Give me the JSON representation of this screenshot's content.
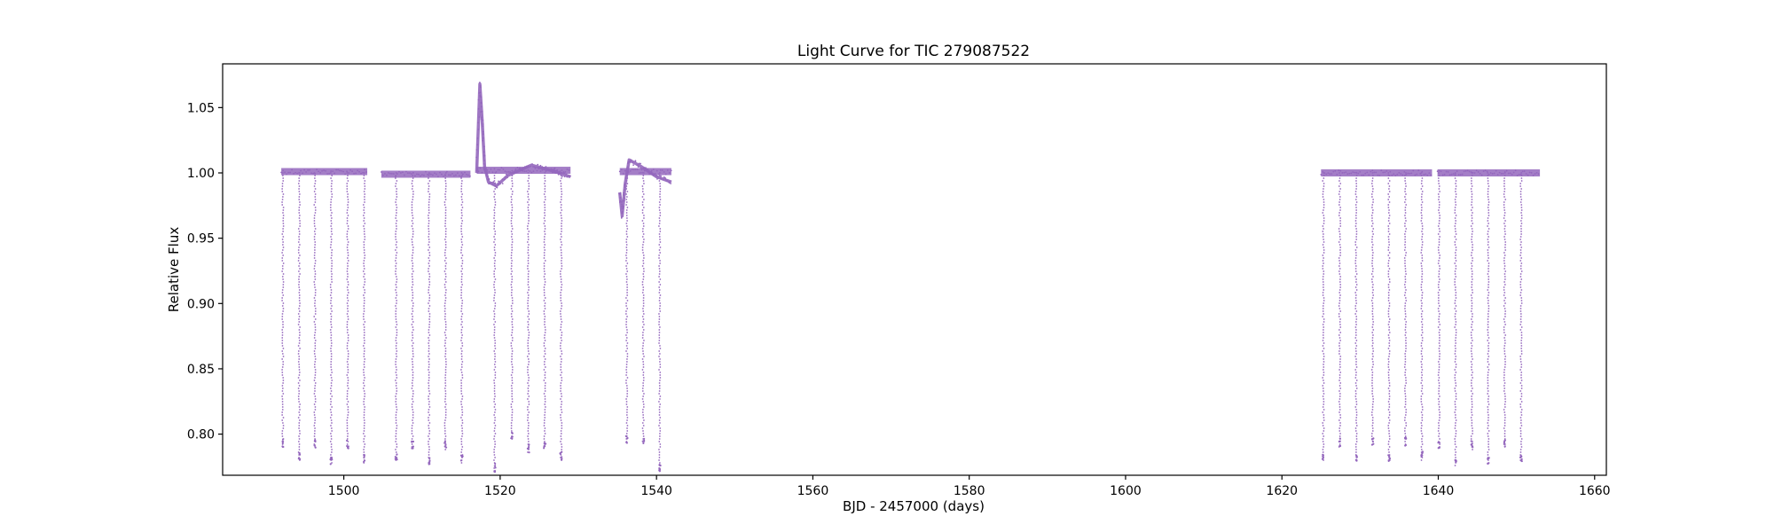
{
  "colors": {
    "series": "#9467bd",
    "axes": "#000000",
    "background": "#ffffff"
  },
  "chart_data": {
    "type": "scatter",
    "title": "Light Curve for TIC 279087522",
    "xlabel": "BJD - 2457000 (days)",
    "ylabel": "Relative Flux",
    "xlim": [
      1484.5,
      1661.5
    ],
    "ylim": [
      0.7685,
      1.0835
    ],
    "xticks": [
      1500,
      1520,
      1540,
      1560,
      1580,
      1600,
      1620,
      1640,
      1660
    ],
    "yticks": [
      0.8,
      0.85,
      0.9,
      0.95,
      1.0,
      1.05
    ],
    "grid": false,
    "legend": "none",
    "series_description": "Near-constant flux baseline around 1.00 with periodic eclipses (period about 2.1 days) dipping to about 0.78, plus a flare near day 1517.5 and a dip near day 1535.5.",
    "baseline_segments": [
      {
        "x_start": 1492.0,
        "x_end": 1503.0,
        "flux": 1.001
      },
      {
        "x_start": 1504.8,
        "x_end": 1516.2,
        "flux": 0.999
      },
      {
        "x_start": 1517.0,
        "x_end": 1529.0,
        "flux": 1.002
      },
      {
        "x_start": 1535.3,
        "x_end": 1541.9,
        "flux": 1.001
      },
      {
        "x_start": 1625.0,
        "x_end": 1639.2,
        "flux": 1.0
      },
      {
        "x_start": 1639.9,
        "x_end": 1653.0,
        "flux": 1.0
      }
    ],
    "eclipses": [
      {
        "x": 1492.2,
        "min_flux": 0.79
      },
      {
        "x": 1494.3,
        "min_flux": 0.78
      },
      {
        "x": 1496.3,
        "min_flux": 0.789
      },
      {
        "x": 1498.4,
        "min_flux": 0.777
      },
      {
        "x": 1500.5,
        "min_flux": 0.789
      },
      {
        "x": 1502.6,
        "min_flux": 0.778
      },
      {
        "x": 1506.7,
        "min_flux": 0.779
      },
      {
        "x": 1508.8,
        "min_flux": 0.789
      },
      {
        "x": 1510.9,
        "min_flux": 0.777
      },
      {
        "x": 1513.0,
        "min_flux": 0.788
      },
      {
        "x": 1515.1,
        "min_flux": 0.778
      },
      {
        "x": 1519.3,
        "min_flux": 0.771
      },
      {
        "x": 1521.5,
        "min_flux": 0.795
      },
      {
        "x": 1523.6,
        "min_flux": 0.786
      },
      {
        "x": 1525.7,
        "min_flux": 0.789
      },
      {
        "x": 1527.8,
        "min_flux": 0.78
      },
      {
        "x": 1536.2,
        "min_flux": 0.793
      },
      {
        "x": 1538.3,
        "min_flux": 0.793
      },
      {
        "x": 1540.4,
        "min_flux": 0.77
      },
      {
        "x": 1625.3,
        "min_flux": 0.779
      },
      {
        "x": 1627.4,
        "min_flux": 0.79
      },
      {
        "x": 1629.5,
        "min_flux": 0.779
      },
      {
        "x": 1631.6,
        "min_flux": 0.791
      },
      {
        "x": 1633.7,
        "min_flux": 0.779
      },
      {
        "x": 1635.8,
        "min_flux": 0.791
      },
      {
        "x": 1637.9,
        "min_flux": 0.78
      },
      {
        "x": 1640.1,
        "min_flux": 0.789
      },
      {
        "x": 1642.2,
        "min_flux": 0.775
      },
      {
        "x": 1644.3,
        "min_flux": 0.788
      },
      {
        "x": 1646.4,
        "min_flux": 0.777
      },
      {
        "x": 1648.5,
        "min_flux": 0.79
      },
      {
        "x": 1650.6,
        "min_flux": 0.779
      }
    ],
    "flare": [
      {
        "x": 1517.0,
        "y": 1.0
      },
      {
        "x": 1517.4,
        "y": 1.068
      },
      {
        "x": 1517.7,
        "y": 1.04
      },
      {
        "x": 1518.0,
        "y": 1.005
      },
      {
        "x": 1518.5,
        "y": 0.993
      },
      {
        "x": 1519.5,
        "y": 0.99
      },
      {
        "x": 1521.0,
        "y": 0.998
      },
      {
        "x": 1524.0,
        "y": 1.006
      },
      {
        "x": 1527.0,
        "y": 1.001
      },
      {
        "x": 1529.0,
        "y": 0.997
      }
    ],
    "dip": [
      {
        "x": 1535.3,
        "y": 0.985
      },
      {
        "x": 1535.6,
        "y": 0.967
      },
      {
        "x": 1536.0,
        "y": 0.992
      },
      {
        "x": 1536.5,
        "y": 1.01
      },
      {
        "x": 1538.0,
        "y": 1.005
      },
      {
        "x": 1540.0,
        "y": 0.997
      },
      {
        "x": 1541.9,
        "y": 0.993
      }
    ]
  }
}
